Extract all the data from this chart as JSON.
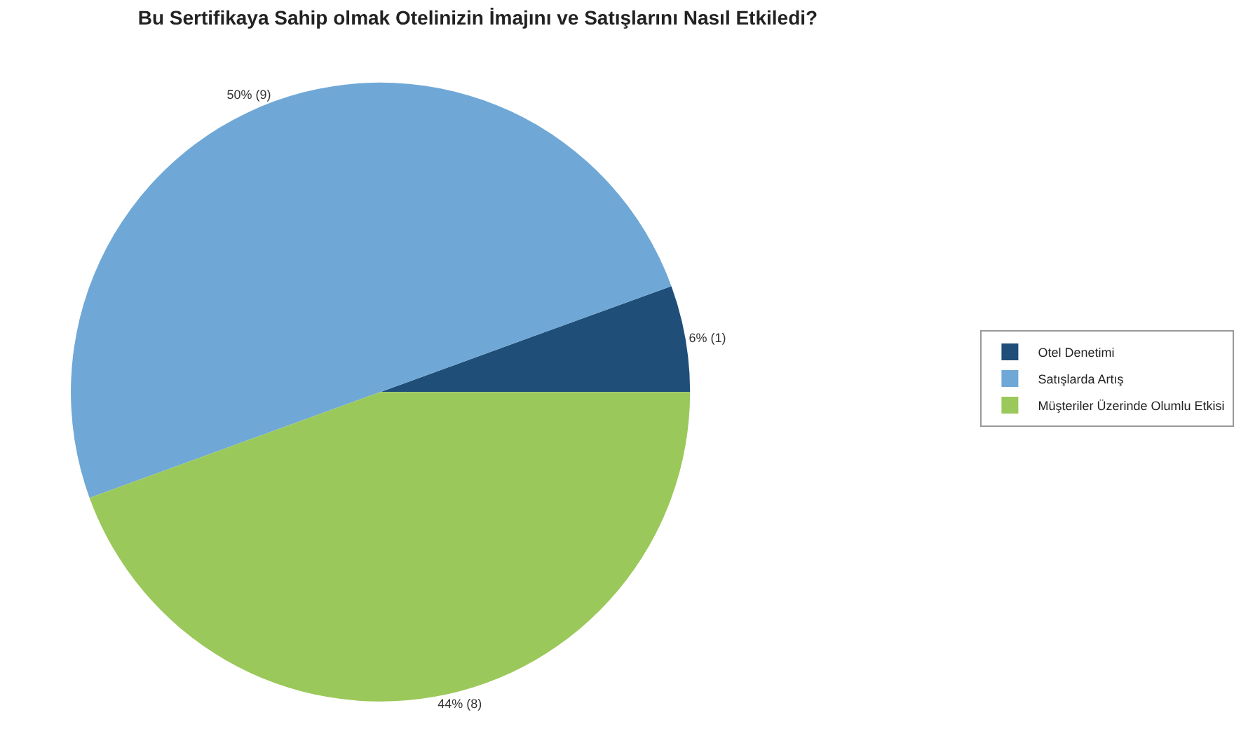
{
  "chart_data": {
    "type": "pie",
    "title": "Bu Sertifikaya Sahip olmak Otelinizin İmajını ve Satışlarını Nasıl Etkiledi?",
    "categories": [
      "Otel Denetimi",
      "Satışlarda Artış",
      "Müşteriler Üzerinde Olumlu Etkisi"
    ],
    "values": [
      1,
      9,
      8
    ],
    "colors": [
      "#1f4e79",
      "#6fa8d6",
      "#9bc85a"
    ],
    "value_labels": [
      "6% (1)",
      "50% (9)",
      "44% (8)"
    ],
    "legend": "right"
  }
}
